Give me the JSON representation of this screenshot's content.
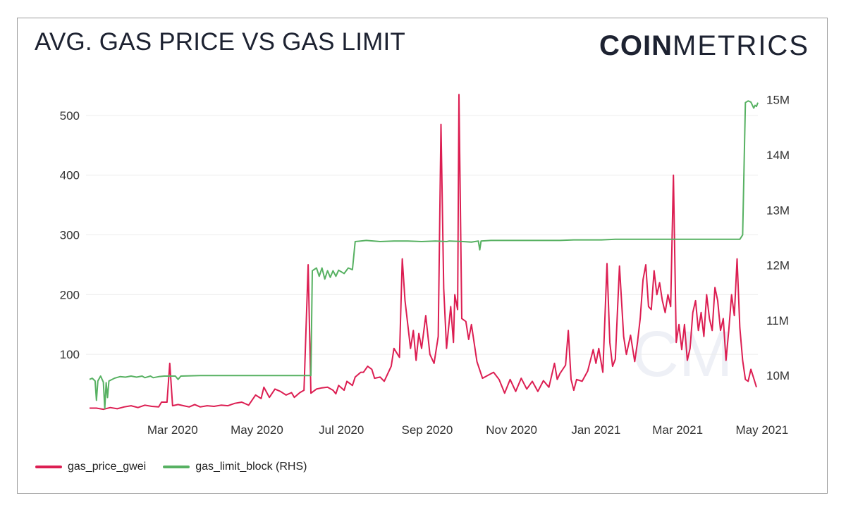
{
  "title": "AVG. GAS PRICE VS GAS LIMIT",
  "logo": {
    "bold": "COIN",
    "light": "METRICS"
  },
  "watermark_text": "CM",
  "colors": {
    "gas_price": "#dc1e52",
    "gas_limit": "#57b162",
    "grid": "#ececec",
    "text": "#333333"
  },
  "chart_data": {
    "type": "line",
    "title": "AVG. GAS PRICE VS GAS LIMIT",
    "x_range": [
      "2020-01-01",
      "2021-05-12"
    ],
    "x_ticks": [
      {
        "label": "Mar 2020",
        "day": 60
      },
      {
        "label": "May 2020",
        "day": 121
      },
      {
        "label": "Jul 2020",
        "day": 182
      },
      {
        "label": "Sep 2020",
        "day": 244
      },
      {
        "label": "Nov 2020",
        "day": 305
      },
      {
        "label": "Jan 2021",
        "day": 366
      },
      {
        "label": "Mar 2021",
        "day": 425
      },
      {
        "label": "May 2021",
        "day": 486
      }
    ],
    "y_left": {
      "label": "gas_price_gwei",
      "range": [
        0,
        540
      ],
      "ticks": [
        100,
        200,
        300,
        400,
        500
      ]
    },
    "y_right": {
      "label": "gas_limit_block (RHS)",
      "range": [
        9300000,
        15150000
      ],
      "ticks": [
        10000000,
        11000000,
        12000000,
        13000000,
        14000000,
        15000000
      ],
      "tick_labels": [
        "10M",
        "11M",
        "12M",
        "13M",
        "14M",
        "15M"
      ]
    },
    "series": [
      {
        "name": "gas_price_gwei",
        "axis": "left",
        "points": [
          [
            0,
            10
          ],
          [
            5,
            10
          ],
          [
            10,
            8
          ],
          [
            15,
            11
          ],
          [
            20,
            9
          ],
          [
            25,
            12
          ],
          [
            30,
            14
          ],
          [
            35,
            11
          ],
          [
            40,
            15
          ],
          [
            45,
            13
          ],
          [
            50,
            12
          ],
          [
            52,
            20
          ],
          [
            56,
            20
          ],
          [
            58,
            85
          ],
          [
            60,
            14
          ],
          [
            64,
            16
          ],
          [
            68,
            14
          ],
          [
            72,
            12
          ],
          [
            76,
            16
          ],
          [
            80,
            12
          ],
          [
            85,
            14
          ],
          [
            90,
            13
          ],
          [
            95,
            15
          ],
          [
            100,
            14
          ],
          [
            105,
            18
          ],
          [
            110,
            20
          ],
          [
            115,
            15
          ],
          [
            120,
            32
          ],
          [
            124,
            26
          ],
          [
            126,
            45
          ],
          [
            130,
            28
          ],
          [
            134,
            42
          ],
          [
            138,
            38
          ],
          [
            142,
            32
          ],
          [
            146,
            36
          ],
          [
            148,
            28
          ],
          [
            152,
            36
          ],
          [
            155,
            40
          ],
          [
            158,
            250
          ],
          [
            160,
            35
          ],
          [
            164,
            42
          ],
          [
            168,
            44
          ],
          [
            172,
            45
          ],
          [
            176,
            40
          ],
          [
            178,
            34
          ],
          [
            180,
            48
          ],
          [
            184,
            40
          ],
          [
            186,
            55
          ],
          [
            190,
            48
          ],
          [
            192,
            62
          ],
          [
            196,
            70
          ],
          [
            198,
            70
          ],
          [
            201,
            80
          ],
          [
            204,
            75
          ],
          [
            206,
            60
          ],
          [
            210,
            62
          ],
          [
            213,
            55
          ],
          [
            218,
            80
          ],
          [
            220,
            110
          ],
          [
            224,
            95
          ],
          [
            226,
            260
          ],
          [
            228,
            190
          ],
          [
            232,
            110
          ],
          [
            234,
            140
          ],
          [
            236,
            90
          ],
          [
            238,
            135
          ],
          [
            240,
            110
          ],
          [
            243,
            165
          ],
          [
            246,
            100
          ],
          [
            249,
            85
          ],
          [
            252,
            130
          ],
          [
            254,
            485
          ],
          [
            256,
            210
          ],
          [
            258,
            110
          ],
          [
            261,
            180
          ],
          [
            263,
            120
          ],
          [
            264,
            200
          ],
          [
            266,
            175
          ],
          [
            267,
            535
          ],
          [
            269,
            160
          ],
          [
            272,
            155
          ],
          [
            274,
            125
          ],
          [
            276,
            150
          ],
          [
            280,
            88
          ],
          [
            284,
            60
          ],
          [
            288,
            65
          ],
          [
            292,
            70
          ],
          [
            296,
            58
          ],
          [
            300,
            35
          ],
          [
            304,
            58
          ],
          [
            308,
            38
          ],
          [
            312,
            60
          ],
          [
            316,
            42
          ],
          [
            320,
            55
          ],
          [
            324,
            38
          ],
          [
            328,
            56
          ],
          [
            332,
            45
          ],
          [
            336,
            85
          ],
          [
            338,
            58
          ],
          [
            340,
            68
          ],
          [
            344,
            82
          ],
          [
            346,
            140
          ],
          [
            348,
            58
          ],
          [
            350,
            40
          ],
          [
            352,
            58
          ],
          [
            356,
            55
          ],
          [
            360,
            72
          ],
          [
            364,
            108
          ],
          [
            366,
            85
          ],
          [
            368,
            110
          ],
          [
            371,
            70
          ],
          [
            374,
            252
          ],
          [
            376,
            120
          ],
          [
            378,
            80
          ],
          [
            380,
            92
          ],
          [
            383,
            248
          ],
          [
            386,
            130
          ],
          [
            388,
            100
          ],
          [
            391,
            132
          ],
          [
            394,
            88
          ],
          [
            396,
            120
          ],
          [
            398,
            160
          ],
          [
            400,
            225
          ],
          [
            402,
            250
          ],
          [
            404,
            180
          ],
          [
            406,
            175
          ],
          [
            408,
            240
          ],
          [
            410,
            200
          ],
          [
            412,
            220
          ],
          [
            414,
            190
          ],
          [
            416,
            170
          ],
          [
            418,
            200
          ],
          [
            420,
            180
          ],
          [
            422,
            400
          ],
          [
            424,
            120
          ],
          [
            426,
            150
          ],
          [
            428,
            108
          ],
          [
            430,
            150
          ],
          [
            432,
            90
          ],
          [
            434,
            110
          ],
          [
            436,
            170
          ],
          [
            438,
            190
          ],
          [
            440,
            140
          ],
          [
            442,
            170
          ],
          [
            444,
            130
          ],
          [
            446,
            200
          ],
          [
            448,
            160
          ],
          [
            450,
            140
          ],
          [
            452,
            212
          ],
          [
            454,
            190
          ],
          [
            456,
            140
          ],
          [
            458,
            160
          ],
          [
            460,
            90
          ],
          [
            462,
            140
          ],
          [
            464,
            200
          ],
          [
            466,
            165
          ],
          [
            468,
            260
          ],
          [
            470,
            145
          ],
          [
            472,
            90
          ],
          [
            474,
            58
          ],
          [
            476,
            55
          ],
          [
            478,
            75
          ],
          [
            480,
            60
          ],
          [
            482,
            45
          ]
        ]
      },
      {
        "name": "gas_limit_block (RHS)",
        "axis": "right",
        "points": [
          [
            0,
            9930000
          ],
          [
            2,
            9950000
          ],
          [
            4,
            9900000
          ],
          [
            5,
            9550000
          ],
          [
            6,
            9900000
          ],
          [
            8,
            9990000
          ],
          [
            10,
            9880000
          ],
          [
            11,
            9400000
          ],
          [
            12,
            9870000
          ],
          [
            13,
            9600000
          ],
          [
            14,
            9900000
          ],
          [
            18,
            9950000
          ],
          [
            22,
            9980000
          ],
          [
            26,
            9970000
          ],
          [
            30,
            9990000
          ],
          [
            34,
            9970000
          ],
          [
            38,
            9990000
          ],
          [
            40,
            9960000
          ],
          [
            44,
            9990000
          ],
          [
            46,
            9960000
          ],
          [
            50,
            9980000
          ],
          [
            54,
            9990000
          ],
          [
            58,
            9990000
          ],
          [
            62,
            9990000
          ],
          [
            64,
            9930000
          ],
          [
            66,
            9990000
          ],
          [
            80,
            10000000
          ],
          [
            100,
            10000000
          ],
          [
            120,
            10000000
          ],
          [
            140,
            10000000
          ],
          [
            155,
            10000000
          ],
          [
            160,
            10000000
          ],
          [
            161,
            11900000
          ],
          [
            164,
            11950000
          ],
          [
            166,
            11800000
          ],
          [
            168,
            11950000
          ],
          [
            170,
            11750000
          ],
          [
            172,
            11900000
          ],
          [
            174,
            11780000
          ],
          [
            176,
            11900000
          ],
          [
            178,
            11800000
          ],
          [
            180,
            11910000
          ],
          [
            184,
            11850000
          ],
          [
            187,
            11950000
          ],
          [
            190,
            11920000
          ],
          [
            192,
            12430000
          ],
          [
            200,
            12450000
          ],
          [
            210,
            12430000
          ],
          [
            220,
            12440000
          ],
          [
            230,
            12440000
          ],
          [
            240,
            12430000
          ],
          [
            250,
            12440000
          ],
          [
            258,
            12430000
          ],
          [
            260,
            12440000
          ],
          [
            270,
            12430000
          ],
          [
            276,
            12420000
          ],
          [
            281,
            12440000
          ],
          [
            282,
            12280000
          ],
          [
            283,
            12440000
          ],
          [
            290,
            12450000
          ],
          [
            300,
            12450000
          ],
          [
            310,
            12450000
          ],
          [
            320,
            12450000
          ],
          [
            330,
            12450000
          ],
          [
            340,
            12450000
          ],
          [
            350,
            12460000
          ],
          [
            360,
            12460000
          ],
          [
            370,
            12460000
          ],
          [
            380,
            12470000
          ],
          [
            400,
            12470000
          ],
          [
            420,
            12470000
          ],
          [
            440,
            12470000
          ],
          [
            460,
            12470000
          ],
          [
            470,
            12470000
          ],
          [
            472,
            12550000
          ],
          [
            474,
            14950000
          ],
          [
            476,
            14980000
          ],
          [
            478,
            14960000
          ],
          [
            480,
            14850000
          ],
          [
            481,
            14900000
          ],
          [
            482,
            14880000
          ],
          [
            483,
            14950000
          ]
        ]
      }
    ]
  },
  "legend": [
    {
      "label": "gas_price_gwei"
    },
    {
      "label": "gas_limit_block (RHS)"
    }
  ]
}
